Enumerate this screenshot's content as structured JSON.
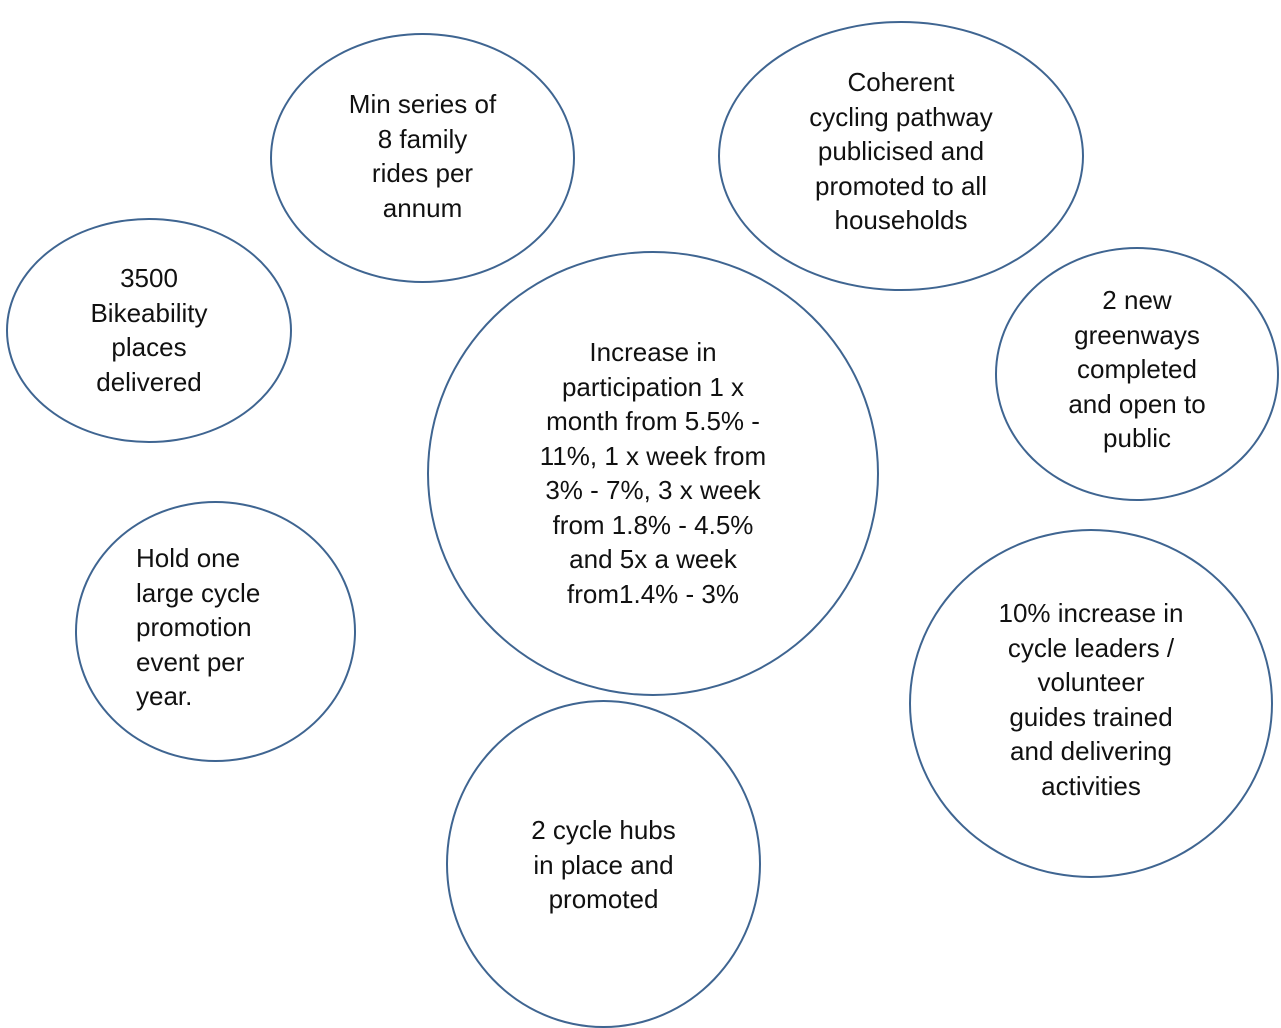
{
  "colors": {
    "outline": "#3f6591",
    "text": "#111111",
    "background": "#ffffff"
  },
  "outcomes": {
    "family_rides": "Min series of\n8 family\nrides per\nannum",
    "pathway": "Coherent\ncycling pathway\npublicised and\npromoted to all\nhouseholds",
    "bikeability": "3500\nBikeability\nplaces\ndelivered",
    "participation": "Increase in\nparticipation 1 x\nmonth from 5.5% -\n11%, 1 x week from\n3% - 7%, 3 x week\nfrom 1.8% - 4.5%\nand 5x a week\nfrom1.4% - 3%",
    "greenways": "2 new\ngreenways\ncompleted\nand open to\npublic",
    "promotion_event": "Hold one\nlarge cycle\npromotion\nevent per\nyear.",
    "cycle_leaders": "10% increase in\ncycle leaders /\nvolunteer\nguides trained\nand delivering\nactivities",
    "cycle_hubs": "2 cycle hubs\nin place and\npromoted"
  }
}
